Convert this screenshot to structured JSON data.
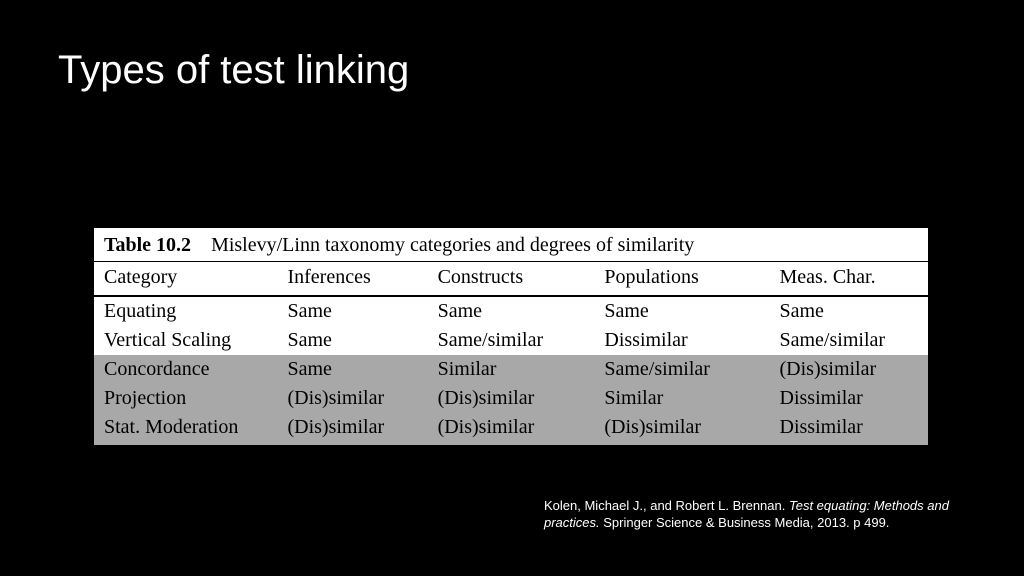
{
  "slide": {
    "title": "Types of test linking",
    "background": "#000000",
    "title_color": "#ffffff",
    "title_fontsize": 40
  },
  "table": {
    "caption_label": "Table 10.2",
    "caption_text": "Mislevy/Linn taxonomy categories and degrees of similarity",
    "columns": [
      "Category",
      "Inferences",
      "Constructs",
      "Populations",
      "Meas. Char."
    ],
    "rows": [
      {
        "bg": "#ffffff",
        "cells": [
          "Equating",
          "Same",
          "Same",
          "Same",
          "Same"
        ]
      },
      {
        "bg": "#ffffff",
        "cells": [
          "Vertical Scaling",
          "Same",
          "Same/similar",
          "Dissimilar",
          "Same/similar"
        ]
      },
      {
        "bg": "#a8a8a8",
        "cells": [
          "Concordance",
          "Same",
          "Similar",
          "Same/similar",
          "(Dis)similar"
        ]
      },
      {
        "bg": "#a8a8a8",
        "cells": [
          "Projection",
          "(Dis)similar",
          "(Dis)similar",
          "Similar",
          "Dissimilar"
        ]
      },
      {
        "bg": "#a8a8a8",
        "cells": [
          "Stat. Moderation",
          "(Dis)similar",
          "(Dis)similar",
          "(Dis)similar",
          "Dissimilar"
        ]
      }
    ],
    "header_bg": "#ffffff",
    "rule_color": "#000000",
    "font_family": "Times New Roman",
    "font_size": 20
  },
  "citation": {
    "authors": "Kolen, Michael J., and Robert L. Brennan. ",
    "title_italic": "Test equating: Methods and practices.",
    "rest": " Springer Science & Business Media, 2013. p 499.",
    "color": "#ffffff",
    "font_size": 13
  }
}
